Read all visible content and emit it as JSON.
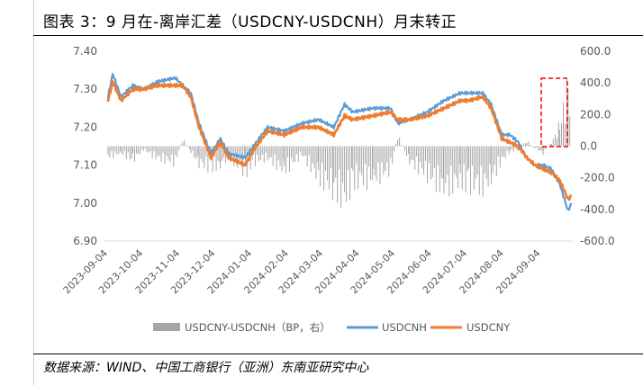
{
  "title": "图表 3：9 月在-离岸汇差（USDCNY-USDCNH）月末转正",
  "source": "数据来源：WIND、中国工商银行（亚洲）东南亚研究中心",
  "colors": {
    "usdcnh": "#5b9bd5",
    "usdcny": "#ed7d31",
    "spread": "#a6a6a6",
    "highlight": "#ff0000"
  },
  "chart_data": {
    "type": "line",
    "title": "图表 3：9 月在-离岸汇差（USDCNY-USDCNH）月末转正",
    "left_axis": {
      "min": 6.9,
      "max": 7.4,
      "ticks": [
        "7.40",
        "7.30",
        "7.20",
        "7.10",
        "7.00",
        "6.90"
      ]
    },
    "right_axis": {
      "min": -600,
      "max": 600,
      "ticks": [
        "600.0",
        "400.0",
        "200.0",
        "0.0",
        "-200.0",
        "-400.0",
        "-600.0"
      ]
    },
    "x_ticks": [
      "2023-09-04",
      "2023-10-04",
      "2023-11-04",
      "2023-12-04",
      "2024-01-04",
      "2024-02-04",
      "2024-03-04",
      "2024-04-04",
      "2024-05-04",
      "2024-06-04",
      "2024-07-04",
      "2024-08-04",
      "2024-09-04"
    ],
    "legend": [
      "USDCNY-USDCNH（BP，右）",
      "USDCNH",
      "USDCNY"
    ],
    "series": [
      {
        "name": "USDCNH",
        "axis": "left",
        "points": [
          [
            "2023-09-04",
            7.28
          ],
          [
            "2023-09-08",
            7.34
          ],
          [
            "2023-09-15",
            7.28
          ],
          [
            "2023-09-25",
            7.31
          ],
          [
            "2023-10-04",
            7.3
          ],
          [
            "2023-10-16",
            7.32
          ],
          [
            "2023-10-31",
            7.33
          ],
          [
            "2023-11-06",
            7.31
          ],
          [
            "2023-11-13",
            7.29
          ],
          [
            "2023-11-20",
            7.21
          ],
          [
            "2023-11-30",
            7.13
          ],
          [
            "2023-12-08",
            7.17
          ],
          [
            "2023-12-15",
            7.13
          ],
          [
            "2023-12-29",
            7.12
          ],
          [
            "2024-01-05",
            7.15
          ],
          [
            "2024-01-17",
            7.2
          ],
          [
            "2024-01-31",
            7.19
          ],
          [
            "2024-02-15",
            7.21
          ],
          [
            "2024-02-29",
            7.22
          ],
          [
            "2024-03-13",
            7.2
          ],
          [
            "2024-03-22",
            7.26
          ],
          [
            "2024-03-29",
            7.24
          ],
          [
            "2024-04-15",
            7.25
          ],
          [
            "2024-04-30",
            7.25
          ],
          [
            "2024-05-06",
            7.21
          ],
          [
            "2024-05-16",
            7.22
          ],
          [
            "2024-05-31",
            7.24
          ],
          [
            "2024-06-14",
            7.27
          ],
          [
            "2024-06-28",
            7.29
          ],
          [
            "2024-07-05",
            7.29
          ],
          [
            "2024-07-17",
            7.29
          ],
          [
            "2024-07-24",
            7.26
          ],
          [
            "2024-08-02",
            7.18
          ],
          [
            "2024-08-09",
            7.18
          ],
          [
            "2024-08-16",
            7.16
          ],
          [
            "2024-08-23",
            7.12
          ],
          [
            "2024-08-30",
            7.1
          ],
          [
            "2024-09-06",
            7.1
          ],
          [
            "2024-09-13",
            7.09
          ],
          [
            "2024-09-20",
            7.05
          ],
          [
            "2024-09-27",
            6.98
          ],
          [
            "2024-09-30",
            7.0
          ]
        ]
      },
      {
        "name": "USDCNY",
        "axis": "left",
        "points": [
          [
            "2023-09-04",
            7.27
          ],
          [
            "2023-09-08",
            7.32
          ],
          [
            "2023-09-15",
            7.27
          ],
          [
            "2023-09-25",
            7.3
          ],
          [
            "2023-10-04",
            7.3
          ],
          [
            "2023-10-16",
            7.31
          ],
          [
            "2023-10-31",
            7.31
          ],
          [
            "2023-11-06",
            7.31
          ],
          [
            "2023-11-13",
            7.28
          ],
          [
            "2023-11-20",
            7.2
          ],
          [
            "2023-11-30",
            7.12
          ],
          [
            "2023-12-08",
            7.16
          ],
          [
            "2023-12-15",
            7.12
          ],
          [
            "2023-12-29",
            7.1
          ],
          [
            "2024-01-05",
            7.14
          ],
          [
            "2024-01-17",
            7.19
          ],
          [
            "2024-01-31",
            7.18
          ],
          [
            "2024-02-15",
            7.2
          ],
          [
            "2024-02-29",
            7.2
          ],
          [
            "2024-03-13",
            7.18
          ],
          [
            "2024-03-22",
            7.23
          ],
          [
            "2024-03-29",
            7.22
          ],
          [
            "2024-04-15",
            7.23
          ],
          [
            "2024-04-30",
            7.24
          ],
          [
            "2024-05-06",
            7.22
          ],
          [
            "2024-05-16",
            7.22
          ],
          [
            "2024-05-31",
            7.23
          ],
          [
            "2024-06-14",
            7.25
          ],
          [
            "2024-06-28",
            7.27
          ],
          [
            "2024-07-05",
            7.27
          ],
          [
            "2024-07-17",
            7.28
          ],
          [
            "2024-07-24",
            7.25
          ],
          [
            "2024-08-02",
            7.17
          ],
          [
            "2024-08-09",
            7.16
          ],
          [
            "2024-08-16",
            7.15
          ],
          [
            "2024-08-23",
            7.12
          ],
          [
            "2024-08-30",
            7.1
          ],
          [
            "2024-09-06",
            7.09
          ],
          [
            "2024-09-13",
            7.08
          ],
          [
            "2024-09-20",
            7.06
          ],
          [
            "2024-09-27",
            7.01
          ],
          [
            "2024-09-30",
            7.02
          ]
        ]
      },
      {
        "name": "USDCNY-USDCNH（BP，右）",
        "axis": "right",
        "type": "bar",
        "values": [
          [
            "2023-09-04",
            -60
          ],
          [
            "2023-09-15",
            -40
          ],
          [
            "2023-09-25",
            -80
          ],
          [
            "2023-10-04",
            -20
          ],
          [
            "2023-10-16",
            -70
          ],
          [
            "2023-10-31",
            -90
          ],
          [
            "2023-11-06",
            40
          ],
          [
            "2023-11-13",
            -30
          ],
          [
            "2023-11-20",
            -100
          ],
          [
            "2023-11-30",
            -120
          ],
          [
            "2023-12-08",
            -110
          ],
          [
            "2023-12-15",
            -60
          ],
          [
            "2023-12-29",
            -150
          ],
          [
            "2024-01-05",
            -90
          ],
          [
            "2024-01-17",
            -70
          ],
          [
            "2024-01-31",
            -140
          ],
          [
            "2024-02-15",
            -50
          ],
          [
            "2024-02-29",
            -180
          ],
          [
            "2024-03-13",
            -240
          ],
          [
            "2024-03-22",
            -300
          ],
          [
            "2024-03-29",
            -200
          ],
          [
            "2024-04-15",
            -190
          ],
          [
            "2024-04-30",
            -130
          ],
          [
            "2024-05-06",
            60
          ],
          [
            "2024-05-16",
            -90
          ],
          [
            "2024-05-31",
            -160
          ],
          [
            "2024-06-14",
            -240
          ],
          [
            "2024-06-28",
            -200
          ],
          [
            "2024-07-05",
            -210
          ],
          [
            "2024-07-17",
            -230
          ],
          [
            "2024-07-24",
            -190
          ],
          [
            "2024-08-02",
            -80
          ],
          [
            "2024-08-09",
            -30
          ],
          [
            "2024-08-16",
            -20
          ],
          [
            "2024-08-23",
            30
          ],
          [
            "2024-08-30",
            -10
          ],
          [
            "2024-09-06",
            -40
          ],
          [
            "2024-09-13",
            20
          ],
          [
            "2024-09-20",
            120
          ],
          [
            "2024-09-27",
            330
          ],
          [
            "2024-09-30",
            210
          ]
        ]
      }
    ]
  }
}
